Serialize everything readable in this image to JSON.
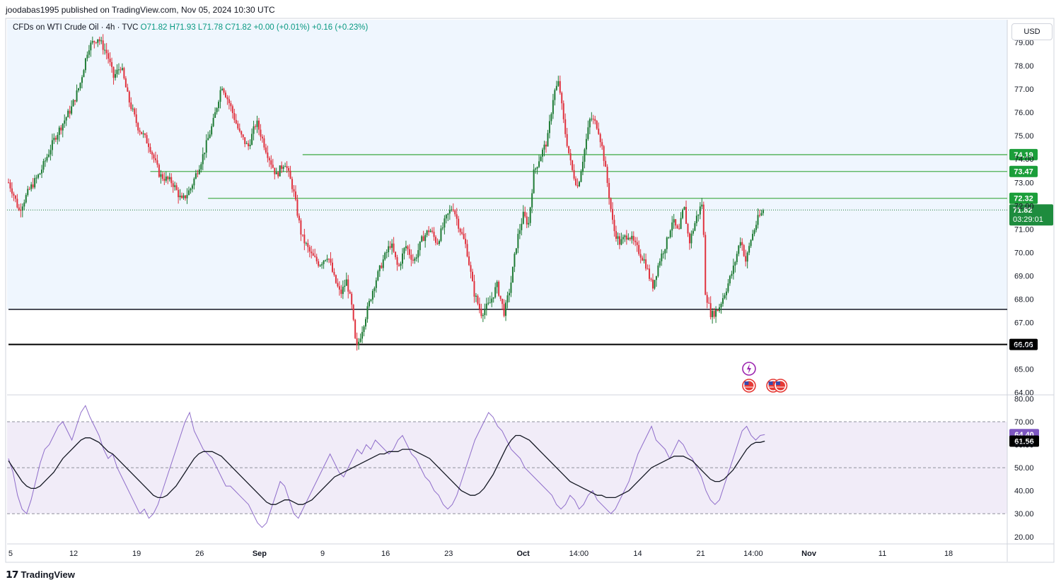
{
  "header": {
    "published": "joodabas1995 published on TradingView.com, Nov 05, 2024 10:30 UTC"
  },
  "legend": {
    "title": "CFDs on WTI Crude Oil · 4h · TVC",
    "open": "O71.82",
    "high": "H71.93",
    "low": "L71.78",
    "close": "C71.82",
    "change": "+0.00 (+0.01%)",
    "change2": "+0.16 (+0.23%)"
  },
  "currency_button": "USD",
  "footer": {
    "brand": "TradingView",
    "logo_icon": "tradingview-logo-icon"
  },
  "colors": {
    "up": "#089981",
    "down": "#f23645",
    "level_green": "#4caf50",
    "rsi": "#7e57c2",
    "rsi_ma": "#131722"
  },
  "chart_data": [
    {
      "type": "candlestick",
      "title": "CFDs on WTI Crude Oil · 4h · TVC",
      "ylim": [
        64,
        79
      ],
      "y_ticks": [
        "79.00",
        "78.00",
        "77.00",
        "76.00",
        "75.00",
        "74.00",
        "73.00",
        "72.00",
        "71.00",
        "70.00",
        "69.00",
        "68.00",
        "67.00",
        "66.00",
        "65.00",
        "64.00"
      ],
      "x_tick_labels": [
        "5",
        "12",
        "19",
        "26",
        "Sep",
        "9",
        "16",
        "23",
        "Oct",
        "14:00",
        "14",
        "21",
        "14:00",
        "Nov",
        "11",
        "18"
      ],
      "key_points": [
        {
          "d": 0,
          "p": 73.0
        },
        {
          "d": 0.4,
          "p": 72.6
        },
        {
          "d": 1.0,
          "p": 71.8
        },
        {
          "d": 2.0,
          "p": 72.7
        },
        {
          "d": 3.0,
          "p": 73.4
        },
        {
          "d": 4.5,
          "p": 75.0
        },
        {
          "d": 6.0,
          "p": 76.2
        },
        {
          "d": 6.8,
          "p": 77.2
        },
        {
          "d": 7.6,
          "p": 78.8
        },
        {
          "d": 8.5,
          "p": 79.2
        },
        {
          "d": 9.4,
          "p": 78.5
        },
        {
          "d": 10.0,
          "p": 77.5
        },
        {
          "d": 10.7,
          "p": 78.0
        },
        {
          "d": 11.4,
          "p": 76.6
        },
        {
          "d": 12.3,
          "p": 75.4
        },
        {
          "d": 13.4,
          "p": 74.6
        },
        {
          "d": 14.4,
          "p": 73.3
        },
        {
          "d": 15.6,
          "p": 73.0
        },
        {
          "d": 16.5,
          "p": 72.2
        },
        {
          "d": 17.3,
          "p": 72.7
        },
        {
          "d": 18.4,
          "p": 74.0
        },
        {
          "d": 19.5,
          "p": 75.6
        },
        {
          "d": 20.3,
          "p": 77.2
        },
        {
          "d": 21.1,
          "p": 76.3
        },
        {
          "d": 22.0,
          "p": 75.1
        },
        {
          "d": 22.8,
          "p": 74.5
        },
        {
          "d": 23.6,
          "p": 75.6
        },
        {
          "d": 24.6,
          "p": 74.3
        },
        {
          "d": 25.5,
          "p": 73.3
        },
        {
          "d": 26.3,
          "p": 73.9
        },
        {
          "d": 27.1,
          "p": 72.7
        },
        {
          "d": 27.9,
          "p": 70.7
        },
        {
          "d": 28.8,
          "p": 69.9
        },
        {
          "d": 29.6,
          "p": 69.5
        },
        {
          "d": 30.4,
          "p": 69.9
        },
        {
          "d": 31.0,
          "p": 68.9
        },
        {
          "d": 31.6,
          "p": 68.2
        },
        {
          "d": 32.2,
          "p": 68.8
        },
        {
          "d": 32.7,
          "p": 67.6
        },
        {
          "d": 33.1,
          "p": 65.8
        },
        {
          "d": 33.6,
          "p": 66.6
        },
        {
          "d": 34.2,
          "p": 67.6
        },
        {
          "d": 34.8,
          "p": 68.6
        },
        {
          "d": 35.6,
          "p": 69.6
        },
        {
          "d": 36.4,
          "p": 70.4
        },
        {
          "d": 37.1,
          "p": 69.3
        },
        {
          "d": 37.8,
          "p": 70.3
        },
        {
          "d": 38.6,
          "p": 69.6
        },
        {
          "d": 39.4,
          "p": 70.6
        },
        {
          "d": 40.1,
          "p": 71.0
        },
        {
          "d": 40.8,
          "p": 70.4
        },
        {
          "d": 41.6,
          "p": 71.4
        },
        {
          "d": 42.3,
          "p": 72.0
        },
        {
          "d": 42.9,
          "p": 71.1
        },
        {
          "d": 43.6,
          "p": 70.2
        },
        {
          "d": 44.3,
          "p": 68.3
        },
        {
          "d": 45.0,
          "p": 67.4
        },
        {
          "d": 45.8,
          "p": 67.8
        },
        {
          "d": 46.5,
          "p": 68.6
        },
        {
          "d": 47.2,
          "p": 67.4
        },
        {
          "d": 47.8,
          "p": 68.6
        },
        {
          "d": 48.4,
          "p": 70.5
        },
        {
          "d": 49.0,
          "p": 71.6
        },
        {
          "d": 49.5,
          "p": 71.2
        },
        {
          "d": 50.0,
          "p": 73.4
        },
        {
          "d": 50.6,
          "p": 74.1
        },
        {
          "d": 51.3,
          "p": 74.8
        },
        {
          "d": 51.9,
          "p": 76.8
        },
        {
          "d": 52.4,
          "p": 77.3
        },
        {
          "d": 52.9,
          "p": 75.4
        },
        {
          "d": 53.6,
          "p": 73.6
        },
        {
          "d": 54.2,
          "p": 72.8
        },
        {
          "d": 54.8,
          "p": 74.3
        },
        {
          "d": 55.4,
          "p": 75.8
        },
        {
          "d": 56.1,
          "p": 75.4
        },
        {
          "d": 56.6,
          "p": 74.3
        },
        {
          "d": 57.1,
          "p": 72.7
        },
        {
          "d": 57.6,
          "p": 71.0
        },
        {
          "d": 58.2,
          "p": 70.4
        },
        {
          "d": 59.0,
          "p": 70.8
        },
        {
          "d": 59.8,
          "p": 70.2
        },
        {
          "d": 60.6,
          "p": 69.6
        },
        {
          "d": 61.3,
          "p": 68.5
        },
        {
          "d": 62.0,
          "p": 69.7
        },
        {
          "d": 62.7,
          "p": 70.5
        },
        {
          "d": 63.2,
          "p": 71.4
        },
        {
          "d": 63.8,
          "p": 70.8
        },
        {
          "d": 64.3,
          "p": 72.0
        },
        {
          "d": 64.8,
          "p": 70.4
        },
        {
          "d": 65.5,
          "p": 71.5
        },
        {
          "d": 66.1,
          "p": 72.2
        },
        {
          "d": 66.3,
          "p": 68.4
        },
        {
          "d": 66.9,
          "p": 67.3
        },
        {
          "d": 67.6,
          "p": 67.6
        },
        {
          "d": 68.3,
          "p": 68.4
        },
        {
          "d": 69.0,
          "p": 69.3
        },
        {
          "d": 69.7,
          "p": 70.6
        },
        {
          "d": 70.2,
          "p": 69.6
        },
        {
          "d": 70.7,
          "p": 70.6
        },
        {
          "d": 71.4,
          "p": 71.5
        },
        {
          "d": 72.0,
          "p": 71.82
        }
      ],
      "horizontal_levels": [
        {
          "price": 74.19,
          "label": "74.19",
          "color": "#4caf50",
          "start_day": 28.0
        },
        {
          "price": 73.47,
          "label": "73.47",
          "color": "#4caf50",
          "start_day": 13.5
        },
        {
          "price": 72.32,
          "label": "72.32",
          "color": "#4caf50",
          "start_day": 19.0
        },
        {
          "price": 67.56,
          "label": "",
          "color": "#131722",
          "start_day": 0
        },
        {
          "price": 66.06,
          "label": "66.06",
          "color": "#000000",
          "start_day": 0
        }
      ],
      "last_price": {
        "value": 71.82,
        "label": "71.82",
        "countdown": "03:29:01"
      },
      "events": [
        {
          "day": 70.5,
          "icon": "lightning-icon"
        },
        {
          "day": 70.5,
          "icon": "us-flag-icon"
        },
        {
          "day": 72.8,
          "icon": "us-flag-icon"
        },
        {
          "day": 73.5,
          "icon": "us-flag-icon"
        }
      ]
    },
    {
      "type": "line",
      "title": "RSI",
      "ylim": [
        17,
        82
      ],
      "y_ticks": [
        "80.00",
        "70.00",
        "60.00",
        "50.00",
        "40.00",
        "30.00",
        "20.00"
      ],
      "bands": {
        "upper": 70,
        "middle": 50,
        "lower": 30
      },
      "series": [
        {
          "values": [
            54,
            48,
            38,
            32,
            30,
            36,
            44,
            52,
            58,
            60,
            64,
            68,
            70,
            66,
            62,
            68,
            74,
            77,
            72,
            68,
            64,
            58,
            54,
            56,
            50,
            46,
            42,
            38,
            34,
            30,
            32,
            28,
            30,
            34,
            40,
            46,
            52,
            58,
            64,
            70,
            74,
            66,
            62,
            58,
            56,
            54,
            50,
            46,
            42,
            42,
            40,
            38,
            36,
            34,
            30,
            26,
            24,
            26,
            32,
            38,
            44,
            42,
            36,
            30,
            28,
            32,
            36,
            40,
            44,
            48,
            52,
            56,
            52,
            48,
            46,
            50,
            54,
            58,
            56,
            60,
            58,
            62,
            60,
            58,
            56,
            58,
            62,
            64,
            60,
            56,
            54,
            50,
            46,
            44,
            40,
            38,
            34,
            32,
            34,
            38,
            44,
            50,
            56,
            62,
            66,
            70,
            74,
            72,
            68,
            66,
            62,
            58,
            56,
            54,
            50,
            48,
            46,
            44,
            42,
            40,
            38,
            34,
            32,
            34,
            38,
            36,
            32,
            34,
            38,
            40,
            36,
            34,
            32,
            30,
            32,
            36,
            40,
            44,
            50,
            56,
            60,
            64,
            68,
            62,
            60,
            58,
            54,
            58,
            62,
            60,
            56,
            54,
            50,
            46,
            40,
            36,
            34,
            36,
            42,
            48,
            54,
            60,
            66,
            68,
            64,
            62,
            64,
            64.4
          ]
        },
        {
          "values": [
            53,
            50,
            47,
            44,
            42,
            41,
            41,
            42,
            44,
            46,
            48,
            51,
            54,
            56,
            58,
            60,
            62,
            63,
            63,
            62,
            61,
            59,
            57,
            56,
            54,
            52,
            50,
            48,
            46,
            44,
            42,
            40,
            38,
            37,
            37,
            38,
            40,
            42,
            45,
            48,
            51,
            54,
            56,
            57,
            57,
            57,
            56,
            55,
            53,
            51,
            49,
            47,
            45,
            43,
            41,
            39,
            37,
            35,
            34,
            34,
            35,
            36,
            36,
            35,
            34,
            34,
            35,
            36,
            38,
            40,
            42,
            44,
            46,
            47,
            48,
            49,
            50,
            51,
            52,
            53,
            54,
            55,
            56,
            56,
            57,
            57,
            57,
            58,
            58,
            58,
            57,
            56,
            55,
            54,
            52,
            50,
            48,
            46,
            44,
            42,
            40,
            39,
            38,
            38,
            39,
            41,
            44,
            47,
            51,
            55,
            59,
            62,
            64,
            64,
            63,
            62,
            60,
            58,
            56,
            54,
            52,
            50,
            48,
            46,
            44,
            43,
            42,
            41,
            40,
            39,
            38,
            38,
            37,
            37,
            37,
            38,
            39,
            40,
            42,
            44,
            46,
            48,
            50,
            51,
            52,
            53,
            54,
            55,
            55,
            55,
            54,
            53,
            51,
            49,
            47,
            45,
            44,
            44,
            45,
            47,
            49,
            52,
            55,
            58,
            60,
            61,
            61,
            61.56
          ]
        }
      ],
      "current_label": "64.40",
      "ma_label": "61.56"
    }
  ]
}
